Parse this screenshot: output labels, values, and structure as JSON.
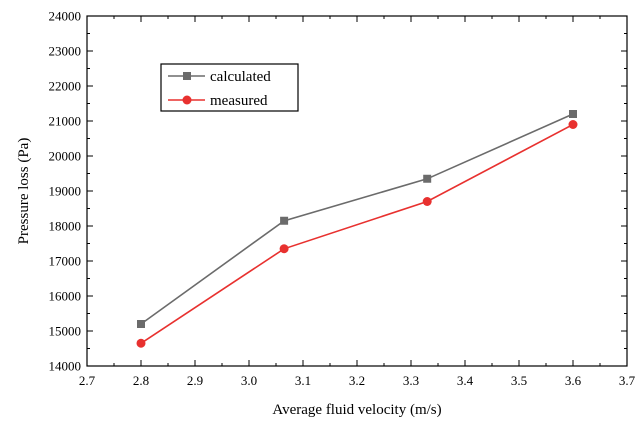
{
  "chart_data": {
    "type": "line",
    "xlabel": "Average fluid velocity (m/s)",
    "ylabel": "Pressure loss (Pa)",
    "xlim": [
      2.7,
      3.7
    ],
    "ylim": [
      14000,
      24000
    ],
    "x_ticks": [
      "2.7",
      "2.8",
      "2.9",
      "3.0",
      "3.1",
      "3.2",
      "3.3",
      "3.4",
      "3.5",
      "3.6",
      "3.7"
    ],
    "y_ticks": [
      "14000",
      "15000",
      "16000",
      "17000",
      "18000",
      "19000",
      "20000",
      "21000",
      "22000",
      "23000",
      "24000"
    ],
    "grid": false,
    "legend_position": "top-left",
    "series": [
      {
        "name": "calculated",
        "color": "#6b6b6b",
        "marker": "square",
        "x": [
          2.8,
          3.065,
          3.33,
          3.6
        ],
        "y": [
          15200,
          18150,
          19350,
          21200
        ]
      },
      {
        "name": "measured",
        "color": "#e8312f",
        "marker": "circle",
        "x": [
          2.8,
          3.065,
          3.33,
          3.6
        ],
        "y": [
          14650,
          17350,
          18700,
          20900
        ]
      }
    ]
  }
}
